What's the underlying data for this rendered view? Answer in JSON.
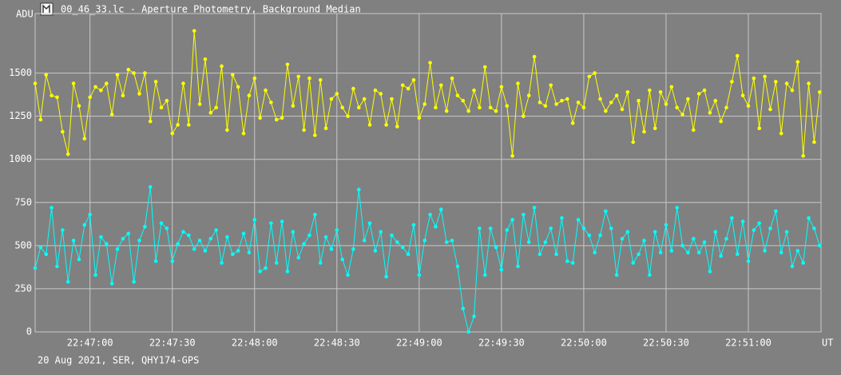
{
  "chart_data": {
    "type": "line",
    "title": "00_46_33.lc - Aperture Photometry, Background Median",
    "ylabel": "ADU",
    "xlabel": "UT",
    "footer": "20 Aug 2021, SER, QHY174-GPS",
    "grid": true,
    "xlim": [
      82000,
      82286.5
    ],
    "ylim": [
      0,
      1845
    ],
    "xticks": [
      {
        "value": 82020,
        "label": "22:47:00"
      },
      {
        "value": 82050,
        "label": "22:47:30"
      },
      {
        "value": 82080,
        "label": "22:48:00"
      },
      {
        "value": 82110,
        "label": "22:48:30"
      },
      {
        "value": 82140,
        "label": "22:49:00"
      },
      {
        "value": 82170,
        "label": "22:49:30"
      },
      {
        "value": 82200,
        "label": "22:50:00"
      },
      {
        "value": 82230,
        "label": "22:50:30"
      },
      {
        "value": 82260,
        "label": "22:51:00"
      }
    ],
    "yticks": [
      0,
      250,
      500,
      750,
      1000,
      1250,
      1500
    ],
    "x": [
      82000,
      82002,
      82004,
      82006,
      82008,
      82010,
      82012,
      82014,
      82016,
      82018,
      82020,
      82022,
      82024,
      82026,
      82028,
      82030,
      82032,
      82034,
      82036,
      82038,
      82040,
      82042,
      82044,
      82046,
      82048,
      82050,
      82052,
      82054,
      82056,
      82058,
      82060,
      82062,
      82064,
      82066,
      82068,
      82070,
      82072,
      82074,
      82076,
      82078,
      82080,
      82082,
      82084,
      82086,
      82088,
      82090,
      82092,
      82094,
      82096,
      82098,
      82100,
      82102,
      82104,
      82106,
      82108,
      82110,
      82112,
      82114,
      82116,
      82118,
      82120,
      82122,
      82124,
      82126,
      82128,
      82130,
      82132,
      82134,
      82136,
      82138,
      82140,
      82142,
      82144,
      82146,
      82148,
      82150,
      82152,
      82154,
      82156,
      82158,
      82160,
      82162,
      82164,
      82166,
      82168,
      82170,
      82172,
      82174,
      82176,
      82178,
      82180,
      82182,
      82184,
      82186,
      82188,
      82190,
      82192,
      82194,
      82196,
      82198,
      82200,
      82202,
      82204,
      82206,
      82208,
      82210,
      82212,
      82214,
      82216,
      82218,
      82220,
      82222,
      82224,
      82226,
      82228,
      82230,
      82232,
      82234,
      82236,
      82238,
      82240,
      82242,
      82244,
      82246,
      82248,
      82250,
      82252,
      82254,
      82256,
      82258,
      82260,
      82262,
      82264,
      82266,
      82268,
      82270,
      82272,
      82274,
      82276,
      82278,
      82280,
      82282,
      82284,
      82286
    ],
    "series": [
      {
        "color": "#ffff00",
        "values": [
          1440,
          1230,
          1490,
          1370,
          1360,
          1160,
          1030,
          1440,
          1310,
          1120,
          1360,
          1420,
          1400,
          1440,
          1260,
          1490,
          1370,
          1520,
          1500,
          1380,
          1500,
          1220,
          1450,
          1300,
          1340,
          1150,
          1200,
          1440,
          1200,
          1745,
          1320,
          1580,
          1270,
          1300,
          1540,
          1170,
          1490,
          1420,
          1150,
          1370,
          1470,
          1240,
          1400,
          1330,
          1230,
          1240,
          1550,
          1310,
          1480,
          1170,
          1470,
          1140,
          1460,
          1180,
          1350,
          1380,
          1300,
          1250,
          1410,
          1300,
          1350,
          1200,
          1400,
          1380,
          1200,
          1350,
          1190,
          1430,
          1410,
          1460,
          1240,
          1320,
          1560,
          1300,
          1430,
          1280,
          1470,
          1370,
          1340,
          1280,
          1400,
          1300,
          1535,
          1300,
          1280,
          1420,
          1310,
          1020,
          1440,
          1250,
          1370,
          1595,
          1330,
          1310,
          1430,
          1320,
          1340,
          1350,
          1210,
          1330,
          1300,
          1480,
          1500,
          1350,
          1280,
          1330,
          1370,
          1290,
          1390,
          1100,
          1340,
          1160,
          1400,
          1180,
          1390,
          1320,
          1420,
          1300,
          1260,
          1350,
          1170,
          1380,
          1400,
          1270,
          1340,
          1220,
          1300,
          1450,
          1600,
          1370,
          1310,
          1470,
          1180,
          1480,
          1290,
          1450,
          1150,
          1440,
          1400,
          1565,
          1020,
          1440,
          1100,
          1390
        ]
      },
      {
        "color": "#00ffff",
        "values": [
          370,
          490,
          450,
          720,
          380,
          590,
          290,
          530,
          420,
          620,
          680,
          330,
          550,
          510,
          280,
          480,
          540,
          570,
          290,
          530,
          610,
          840,
          410,
          630,
          600,
          410,
          510,
          580,
          560,
          480,
          530,
          470,
          540,
          590,
          400,
          550,
          450,
          470,
          570,
          460,
          650,
          350,
          370,
          630,
          400,
          640,
          350,
          580,
          430,
          510,
          560,
          680,
          400,
          550,
          480,
          590,
          420,
          330,
          480,
          825,
          530,
          630,
          470,
          580,
          320,
          560,
          520,
          490,
          450,
          620,
          330,
          530,
          680,
          610,
          710,
          520,
          530,
          380,
          135,
          0,
          90,
          600,
          330,
          600,
          490,
          360,
          590,
          650,
          380,
          680,
          520,
          720,
          450,
          520,
          600,
          450,
          660,
          410,
          400,
          650,
          600,
          560,
          460,
          560,
          700,
          600,
          330,
          540,
          580,
          400,
          450,
          530,
          330,
          580,
          460,
          620,
          470,
          720,
          500,
          460,
          540,
          460,
          520,
          350,
          580,
          440,
          540,
          660,
          450,
          640,
          410,
          590,
          630,
          470,
          600,
          700,
          460,
          580,
          380,
          470,
          400,
          660,
          600,
          500
        ]
      }
    ]
  }
}
